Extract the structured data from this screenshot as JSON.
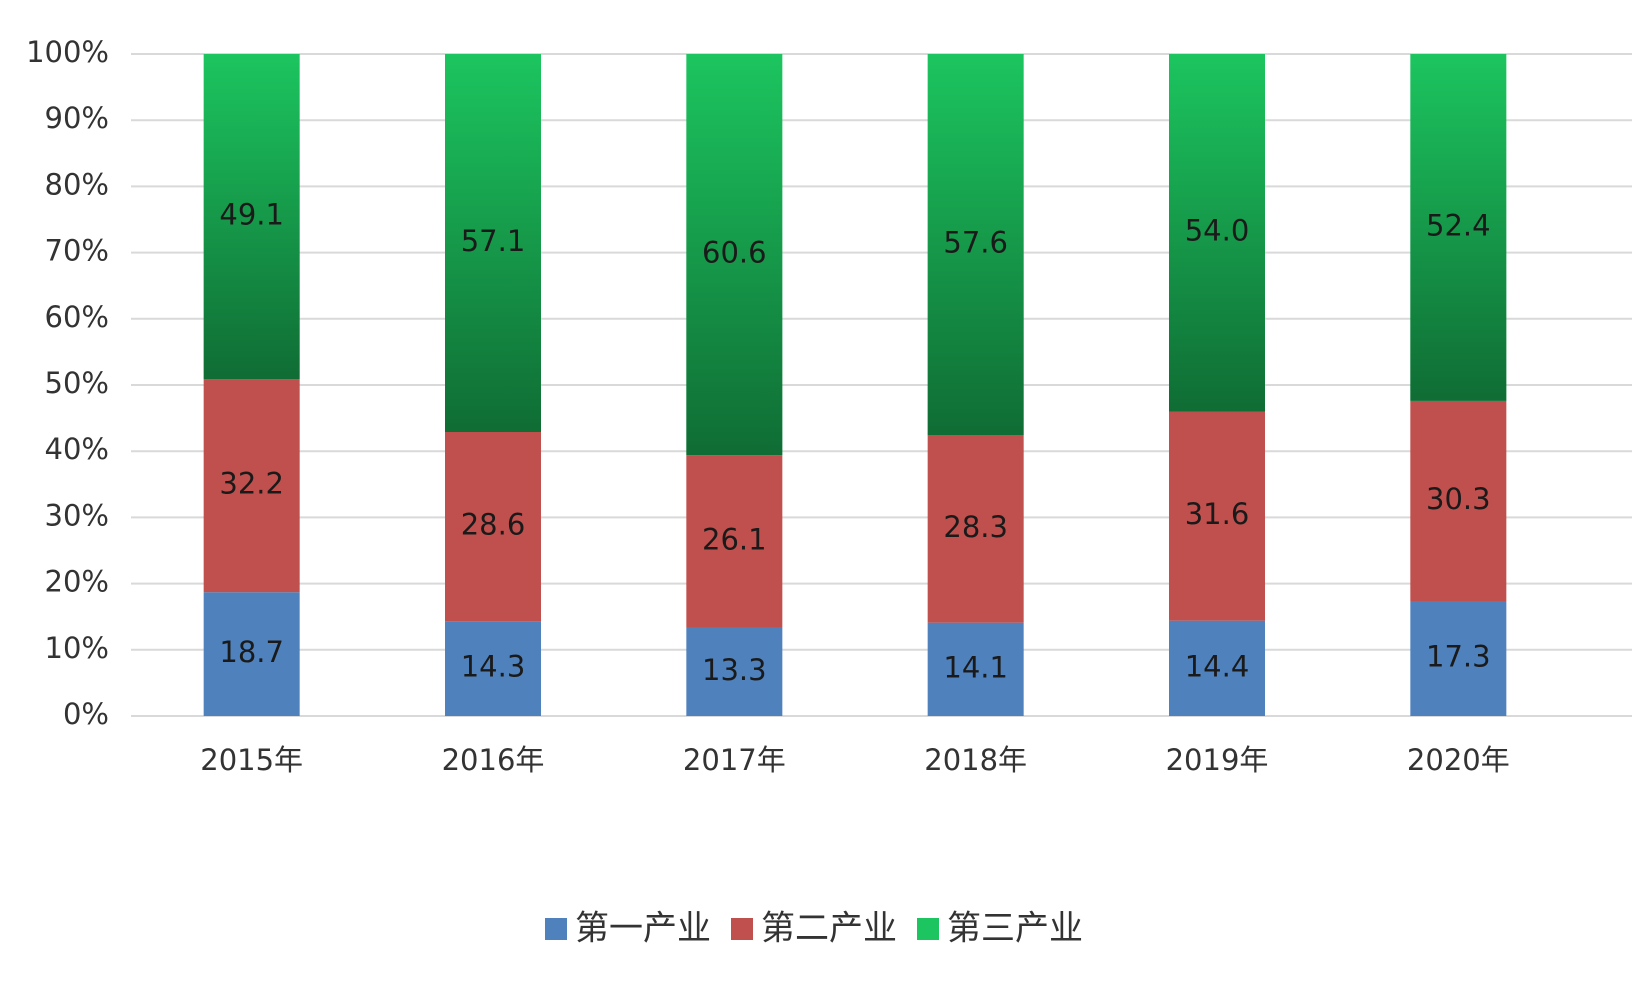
{
  "chart_data": {
    "type": "bar",
    "stacked": true,
    "categories": [
      "2015年",
      "2016年",
      "2017年",
      "2018年",
      "2019年",
      "2020年"
    ],
    "series": [
      {
        "name": "第一产业",
        "color": "#4f81bd",
        "values": [
          18.7,
          14.3,
          13.3,
          14.1,
          14.4,
          17.3
        ]
      },
      {
        "name": "第二产业",
        "color": "#c0504d",
        "values": [
          32.2,
          28.6,
          26.1,
          28.3,
          31.6,
          30.3
        ]
      },
      {
        "name": "第三产业",
        "color": "#1cc55f",
        "values": [
          49.1,
          57.1,
          60.6,
          57.6,
          54.0,
          52.4
        ],
        "value_labels": [
          "49.1",
          "57.1",
          "60.6",
          "57.6",
          "54.0",
          "52.4"
        ]
      }
    ],
    "ylim": [
      0,
      100
    ],
    "yticks": [
      {
        "value": 0,
        "label": "0%"
      },
      {
        "value": 10,
        "label": "10%"
      },
      {
        "value": 20,
        "label": "20%"
      },
      {
        "value": 30,
        "label": "30%"
      },
      {
        "value": 40,
        "label": "40%"
      },
      {
        "value": 50,
        "label": "50%"
      },
      {
        "value": 60,
        "label": "60%"
      },
      {
        "value": 70,
        "label": "70%"
      },
      {
        "value": 80,
        "label": "80%"
      },
      {
        "value": 90,
        "label": "90%"
      },
      {
        "value": 100,
        "label": "100%"
      }
    ],
    "grid": true,
    "legend": "bottom"
  }
}
